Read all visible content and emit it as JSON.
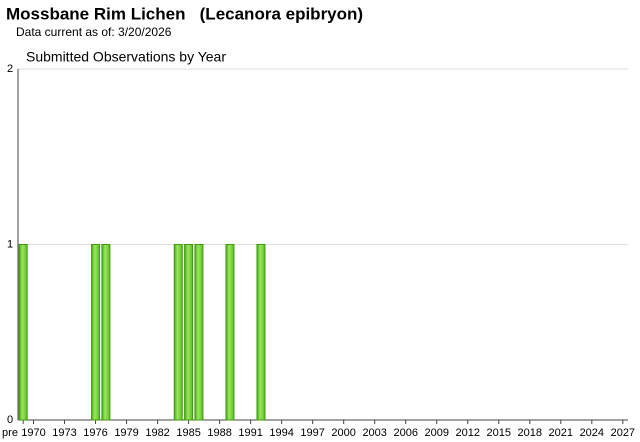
{
  "header": {
    "title": "Mossbane Rim Lichen   (Lecanora epibryon)",
    "subtitle": "Data current as of: 3/20/2026"
  },
  "chart_data": {
    "type": "bar",
    "title": "Submitted Observations by Year",
    "categories": [
      "pre",
      "1970",
      null,
      null,
      "1973",
      null,
      null,
      "1976",
      null,
      null,
      "1979",
      null,
      null,
      "1982",
      null,
      null,
      "1985",
      null,
      null,
      "1988",
      null,
      null,
      "1991",
      null,
      null,
      "1994",
      null,
      null,
      "1997",
      null,
      null,
      "2000",
      null,
      null,
      "2003",
      null,
      null,
      "2006",
      null,
      null,
      "2009",
      null,
      null,
      "2012",
      null,
      null,
      "2015",
      null,
      null,
      "2018",
      null,
      null,
      "2021",
      null,
      null,
      "2024",
      null,
      null,
      "2027"
    ],
    "values": [
      1,
      0,
      0,
      0,
      0,
      0,
      0,
      1,
      1,
      0,
      0,
      0,
      0,
      0,
      0,
      1,
      1,
      1,
      0,
      0,
      1,
      0,
      0,
      1,
      0,
      0,
      0,
      0,
      0,
      0,
      0,
      0,
      0,
      0,
      0,
      0,
      0,
      0,
      0,
      0,
      0,
      0,
      0,
      0,
      0,
      0,
      0,
      0,
      0,
      0,
      0,
      0,
      0,
      0,
      0,
      0,
      0,
      0,
      0
    ],
    "color": "#7fd83a",
    "ylim": [
      0,
      2
    ],
    "yticks": [
      0,
      1,
      2
    ],
    "grid": true
  }
}
